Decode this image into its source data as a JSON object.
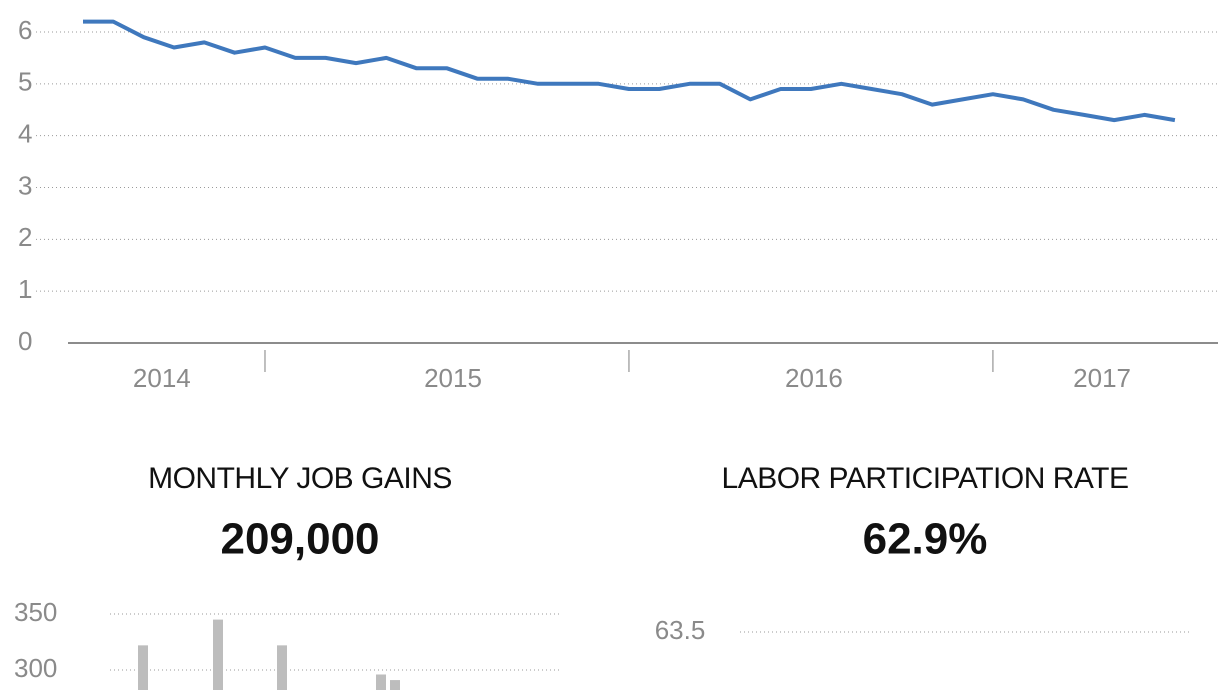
{
  "chart_data": [
    {
      "type": "line",
      "categories": [
        null,
        null,
        null,
        null,
        null,
        null,
        null,
        null,
        null,
        null,
        null,
        null,
        null,
        null,
        null,
        null,
        null,
        null,
        null,
        null,
        null,
        null,
        null,
        null,
        null,
        null,
        null,
        null,
        null,
        null,
        null,
        null,
        null,
        null,
        null,
        null,
        null
      ],
      "year_labels": [
        "2014",
        "2015",
        "2016",
        "2017"
      ],
      "series": [
        {
          "color": "#3f78bd",
          "values": [
            6.2,
            6.2,
            5.9,
            5.7,
            5.8,
            5.6,
            5.7,
            5.5,
            5.5,
            5.4,
            5.5,
            5.3,
            5.3,
            5.1,
            5.1,
            5.0,
            5.0,
            5.0,
            4.9,
            4.9,
            5.0,
            5.0,
            4.7,
            4.9,
            4.9,
            5.0,
            4.9,
            4.8,
            4.6,
            4.7,
            4.8,
            4.7,
            4.5,
            4.4,
            4.3,
            4.4,
            4.3
          ]
        }
      ],
      "ylim": [
        0,
        6
      ],
      "yticks": [
        0,
        1,
        2,
        3,
        4,
        5,
        6
      ],
      "grid": true
    },
    {
      "type": "bar",
      "title": "MONTHLY JOB GAINS",
      "headline": "209,000",
      "categories": [
        null,
        null,
        null,
        null,
        null
      ],
      "values": [
        322,
        345,
        322,
        296,
        291
      ],
      "color": "#bdbdbd",
      "ylim": [
        0,
        350
      ],
      "yticks": [
        300,
        350
      ],
      "grid": true
    },
    {
      "type": "line",
      "title": "LABOR PARTICIPATION RATE",
      "headline": "62.9%",
      "yticks": [
        63.5
      ],
      "grid": true
    }
  ]
}
